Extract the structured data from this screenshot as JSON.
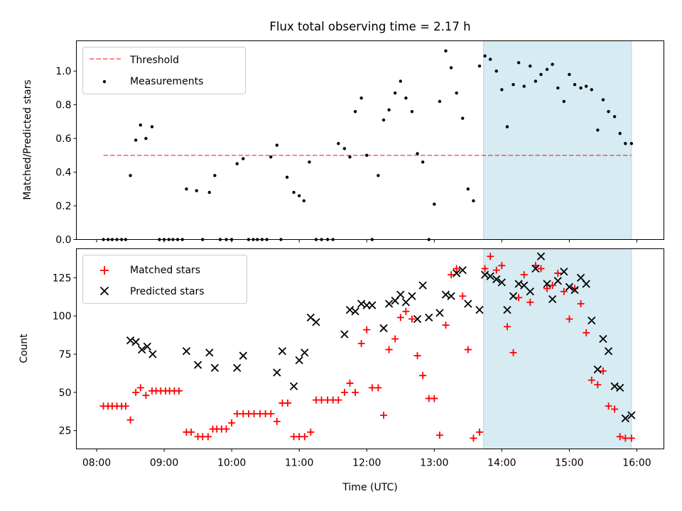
{
  "chart_data": [
    {
      "type": "scatter",
      "title": "Flux total observing time = 2.17 h",
      "xlabel": "",
      "ylabel": "Matched/Predicted stars",
      "xlim": [
        7.7,
        16.4
      ],
      "ylim": [
        0,
        1.18
      ],
      "yticks": [
        0.0,
        0.2,
        0.4,
        0.6,
        0.8,
        1.0
      ],
      "ytick_labels": [
        "0.0",
        "0.2",
        "0.4",
        "0.6",
        "0.8",
        "1.0"
      ],
      "shaded_span": [
        13.73,
        15.92
      ],
      "shaded_color": "#add8e6",
      "legend_position": "upper-left",
      "series": [
        {
          "name": "Threshold",
          "kind": "line",
          "style": "dashed",
          "color": "#ff0000",
          "x": [
            8.1,
            15.92
          ],
          "y": [
            0.5,
            0.5
          ]
        },
        {
          "name": "Measurements",
          "kind": "points",
          "color": "#000000",
          "x": [
            8.1,
            8.17,
            8.23,
            8.3,
            8.37,
            8.43,
            8.5,
            8.58,
            8.65,
            8.73,
            8.82,
            8.93,
            9.0,
            9.07,
            9.13,
            9.2,
            9.27,
            9.33,
            9.48,
            9.57,
            9.67,
            9.75,
            9.83,
            9.92,
            10.0,
            10.08,
            10.17,
            10.25,
            10.32,
            10.38,
            10.45,
            10.52,
            10.58,
            10.67,
            10.73,
            10.82,
            10.92,
            11.0,
            11.07,
            11.15,
            11.25,
            11.33,
            11.42,
            11.5,
            11.58,
            11.67,
            11.75,
            11.83,
            11.92,
            12.0,
            12.08,
            12.17,
            12.25,
            12.33,
            12.42,
            12.5,
            12.58,
            12.67,
            12.75,
            12.83,
            12.92,
            13.0,
            13.08,
            13.17,
            13.25,
            13.33,
            13.42,
            13.5,
            13.58,
            13.67,
            13.75,
            13.83,
            13.92,
            14.0,
            14.08,
            14.17,
            14.25,
            14.33,
            14.42,
            14.5,
            14.58,
            14.67,
            14.75,
            14.83,
            14.92,
            15.0,
            15.08,
            15.17,
            15.25,
            15.33,
            15.42,
            15.5,
            15.58,
            15.67,
            15.75,
            15.83,
            15.92
          ],
          "y": [
            0.0,
            0.0,
            0.0,
            0.0,
            0.0,
            0.0,
            0.38,
            0.59,
            0.68,
            0.6,
            0.67,
            0.0,
            0.0,
            0.0,
            0.0,
            0.0,
            0.0,
            0.3,
            0.29,
            0.0,
            0.28,
            0.38,
            0.0,
            0.0,
            0.0,
            0.45,
            0.48,
            0.0,
            0.0,
            0.0,
            0.0,
            0.0,
            0.49,
            0.56,
            0.0,
            0.37,
            0.28,
            0.26,
            0.23,
            0.46,
            0.0,
            0.0,
            0.0,
            0.0,
            0.57,
            0.54,
            0.49,
            0.76,
            0.84,
            0.5,
            0.0,
            0.38,
            0.71,
            0.77,
            0.87,
            0.94,
            0.84,
            0.76,
            0.51,
            0.46,
            0.0,
            0.21,
            0.82,
            1.12,
            1.02,
            0.87,
            0.72,
            0.3,
            0.23,
            1.03,
            1.09,
            1.07,
            1.0,
            0.89,
            0.67,
            0.92,
            1.05,
            0.91,
            1.03,
            0.94,
            0.98,
            1.01,
            1.04,
            0.9,
            0.82,
            0.98,
            0.92,
            0.9,
            0.91,
            0.89,
            0.65,
            0.83,
            0.76,
            0.73,
            0.63,
            0.57,
            0.57
          ]
        }
      ]
    },
    {
      "type": "scatter",
      "title": "",
      "xlabel": "Time (UTC)",
      "ylabel": "Count",
      "xlim": [
        7.7,
        16.4
      ],
      "ylim": [
        13,
        144
      ],
      "yticks": [
        25,
        50,
        75,
        100,
        125
      ],
      "ytick_labels": [
        "25",
        "50",
        "75",
        "100",
        "125"
      ],
      "xticks": [
        8,
        9,
        10,
        11,
        12,
        13,
        14,
        15,
        16
      ],
      "xtick_labels": [
        "08:00",
        "09:00",
        "10:00",
        "11:00",
        "12:00",
        "13:00",
        "14:00",
        "15:00",
        "16:00"
      ],
      "shaded_span": [
        13.73,
        15.92
      ],
      "shaded_color": "#add8e6",
      "legend_position": "upper-left",
      "series": [
        {
          "name": "Matched stars",
          "kind": "plus",
          "color": "#ff0000",
          "x": [
            8.1,
            8.17,
            8.23,
            8.3,
            8.37,
            8.43,
            8.5,
            8.58,
            8.65,
            8.73,
            8.82,
            8.88,
            8.95,
            9.02,
            9.08,
            9.15,
            9.22,
            9.33,
            9.4,
            9.5,
            9.57,
            9.65,
            9.72,
            9.78,
            9.85,
            9.92,
            10.0,
            10.08,
            10.17,
            10.25,
            10.33,
            10.42,
            10.5,
            10.58,
            10.67,
            10.75,
            10.83,
            10.92,
            11.0,
            11.08,
            11.17,
            11.25,
            11.33,
            11.42,
            11.5,
            11.58,
            11.67,
            11.75,
            11.83,
            11.92,
            12.0,
            12.08,
            12.17,
            12.25,
            12.33,
            12.42,
            12.5,
            12.58,
            12.67,
            12.75,
            12.83,
            12.92,
            13.0,
            13.08,
            13.17,
            13.25,
            13.33,
            13.42,
            13.5,
            13.58,
            13.67,
            13.75,
            13.83,
            13.92,
            14.0,
            14.08,
            14.17,
            14.25,
            14.33,
            14.42,
            14.5,
            14.58,
            14.67,
            14.75,
            14.83,
            14.92,
            15.0,
            15.08,
            15.17,
            15.25,
            15.33,
            15.42,
            15.5,
            15.58,
            15.67,
            15.75,
            15.83,
            15.92
          ],
          "y": [
            41,
            41,
            41,
            41,
            41,
            41,
            32,
            50,
            53,
            48,
            51,
            51,
            51,
            51,
            51,
            51,
            51,
            24,
            24,
            21,
            21,
            21,
            26,
            26,
            26,
            26,
            30,
            36,
            36,
            36,
            36,
            36,
            36,
            36,
            31,
            43,
            43,
            21,
            21,
            21,
            24,
            45,
            45,
            45,
            45,
            45,
            50,
            56,
            50,
            82,
            91,
            53,
            53,
            35,
            78,
            85,
            99,
            103,
            98,
            74,
            61,
            46,
            46,
            22,
            94,
            127,
            131,
            113,
            78,
            20,
            24,
            131,
            139,
            130,
            133,
            93,
            76,
            112,
            127,
            109,
            133,
            131,
            118,
            120,
            128,
            116,
            98,
            118,
            108,
            89,
            58,
            55,
            64,
            41,
            39,
            21,
            20,
            20
          ]
        },
        {
          "name": "Predicted stars",
          "kind": "x",
          "color": "#000000",
          "x": [
            8.5,
            8.58,
            8.67,
            8.75,
            8.83,
            9.33,
            9.5,
            9.67,
            9.75,
            10.08,
            10.17,
            10.67,
            10.75,
            10.92,
            11.0,
            11.08,
            11.17,
            11.25,
            11.67,
            11.75,
            11.83,
            11.92,
            12.0,
            12.08,
            12.25,
            12.33,
            12.42,
            12.5,
            12.58,
            12.67,
            12.75,
            12.83,
            12.92,
            13.08,
            13.17,
            13.25,
            13.33,
            13.42,
            13.5,
            13.67,
            13.75,
            13.83,
            13.92,
            14.0,
            14.08,
            14.17,
            14.25,
            14.33,
            14.42,
            14.5,
            14.58,
            14.67,
            14.75,
            14.83,
            14.92,
            15.0,
            15.08,
            15.17,
            15.25,
            15.33,
            15.42,
            15.5,
            15.58,
            15.67,
            15.75,
            15.83,
            15.92
          ],
          "y": [
            84,
            83,
            78,
            80,
            75,
            77,
            68,
            76,
            66,
            66,
            74,
            63,
            77,
            54,
            71,
            76,
            99,
            96,
            88,
            104,
            103,
            108,
            107,
            107,
            92,
            108,
            110,
            114,
            109,
            113,
            98,
            120,
            99,
            102,
            114,
            113,
            128,
            130,
            108,
            104,
            127,
            126,
            124,
            122,
            104,
            113,
            121,
            120,
            116,
            131,
            139,
            121,
            111,
            123,
            129,
            119,
            117,
            125,
            121,
            97,
            65,
            85,
            77,
            54,
            53,
            33,
            35
          ]
        }
      ]
    }
  ]
}
